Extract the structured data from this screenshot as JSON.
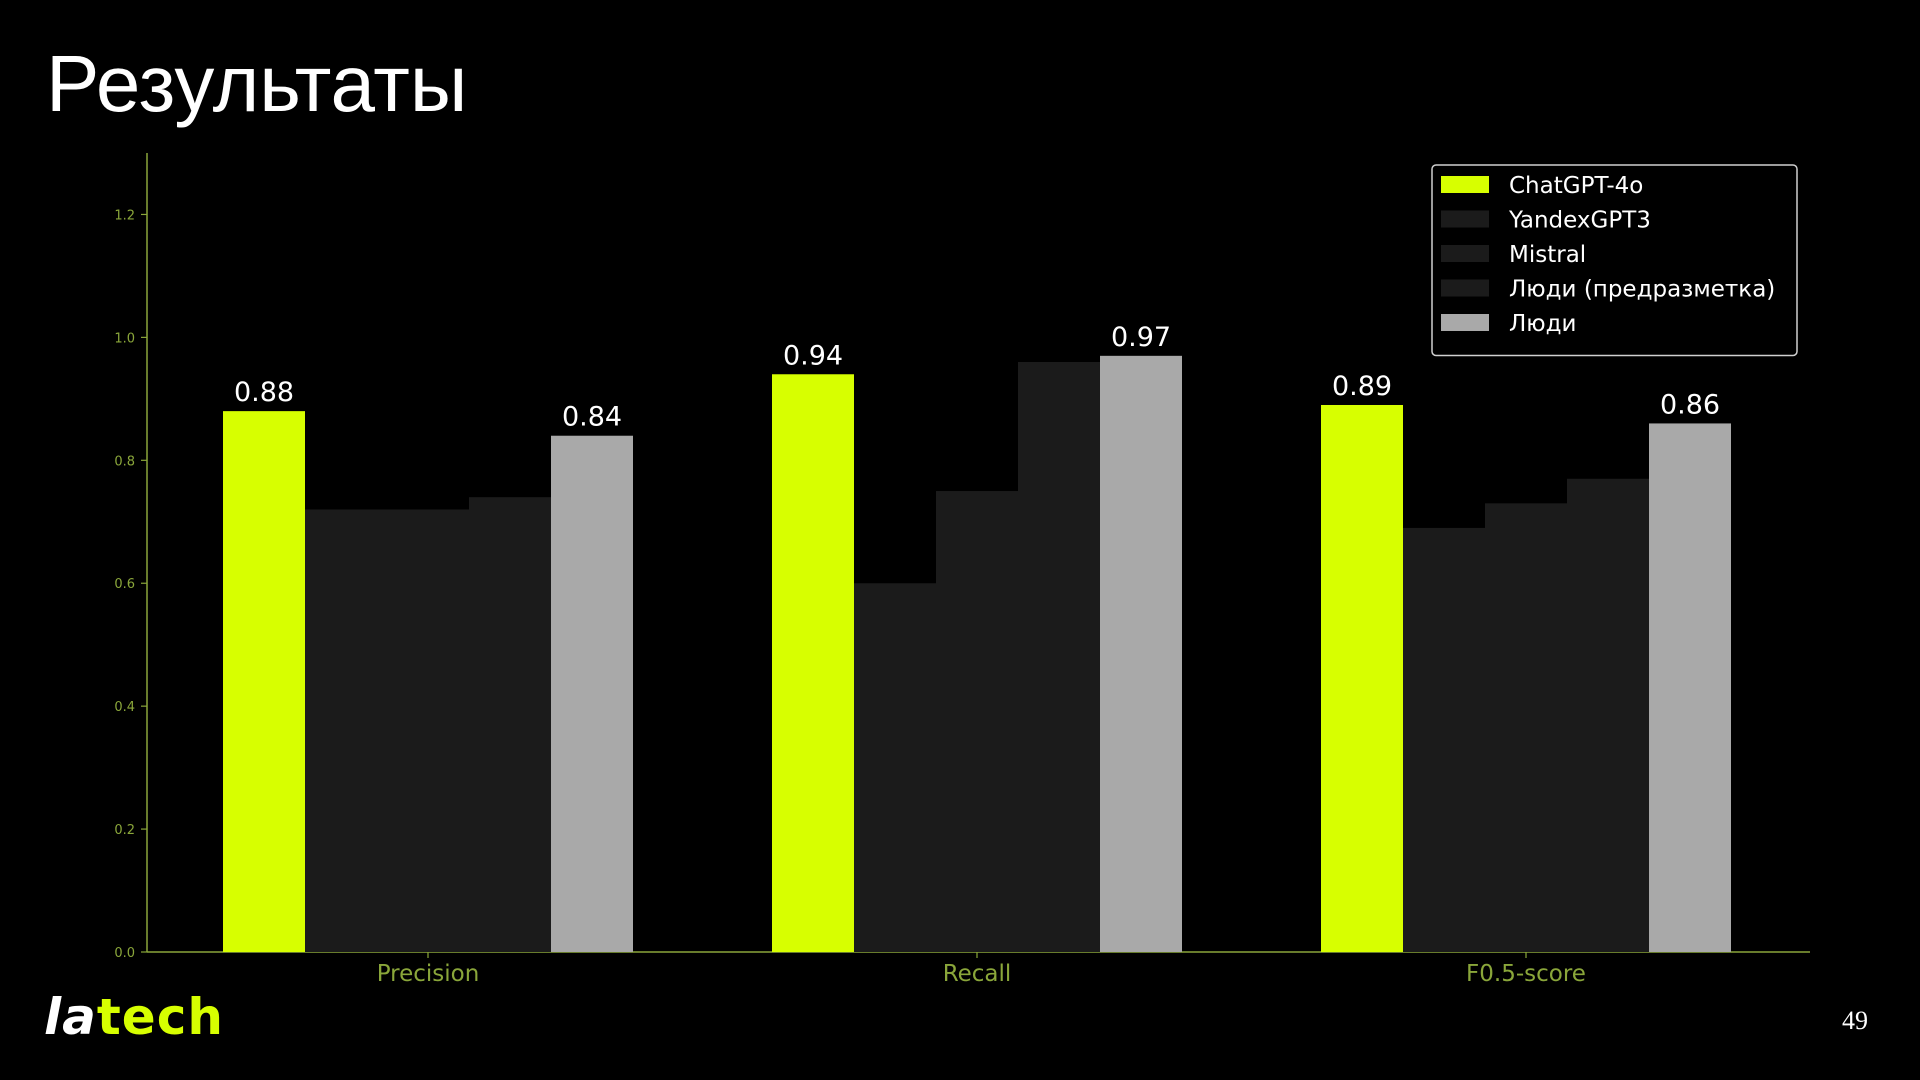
{
  "slide": {
    "title": "Результаты",
    "page_number": "49",
    "logo": {
      "left": "la",
      "right": "tech"
    }
  },
  "colors": {
    "background": "#000000",
    "axis": "#8aa63a",
    "tick_text": "#8aa63a",
    "label_text": "#ffffff",
    "legend_border": "#d0d0d0"
  },
  "chart_data": {
    "type": "bar",
    "title": "",
    "xlabel": "",
    "ylabel": "",
    "ylim": [
      0,
      1.3
    ],
    "yticks": [
      0.0,
      0.2,
      0.4,
      0.6,
      0.8,
      1.0,
      1.2
    ],
    "ytick_labels": [
      "0.0",
      "0.2",
      "0.4",
      "0.6",
      "0.8",
      "1.0",
      "1.2"
    ],
    "grid": false,
    "legend_position": "top-right",
    "categories": [
      "Precision",
      "Recall",
      "F0.5-score"
    ],
    "series": [
      {
        "name": "ChatGPT-4o",
        "color": "#d7ff00",
        "values": [
          0.88,
          0.94,
          0.89
        ],
        "labels": [
          "0.88",
          "0.94",
          "0.89"
        ]
      },
      {
        "name": "YandexGPT3",
        "color": "#1b1b1b",
        "values": [
          0.72,
          0.6,
          0.69
        ],
        "labels": [
          "",
          "",
          ""
        ]
      },
      {
        "name": "Mistral",
        "color": "#1b1b1b",
        "values": [
          0.72,
          0.75,
          0.73
        ],
        "labels": [
          "",
          "",
          ""
        ]
      },
      {
        "name": "Люди (предразметка)",
        "color": "#1b1b1b",
        "values": [
          0.74,
          0.96,
          0.77
        ],
        "labels": [
          "",
          "",
          ""
        ]
      },
      {
        "name": "Люди",
        "color": "#a9a9a9",
        "values": [
          0.84,
          0.97,
          0.86
        ],
        "labels": [
          "0.84",
          "0.97",
          "0.86"
        ]
      }
    ]
  }
}
